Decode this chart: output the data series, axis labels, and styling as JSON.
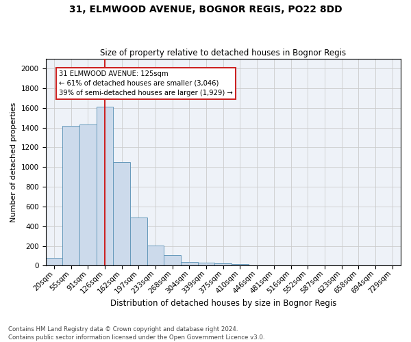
{
  "title1": "31, ELMWOOD AVENUE, BOGNOR REGIS, PO22 8DD",
  "title2": "Size of property relative to detached houses in Bognor Regis",
  "xlabel": "Distribution of detached houses by size in Bognor Regis",
  "ylabel": "Number of detached properties",
  "bar_color": "#ccdaeb",
  "bar_edge_color": "#6699bb",
  "categories": [
    "20sqm",
    "55sqm",
    "91sqm",
    "126sqm",
    "162sqm",
    "197sqm",
    "233sqm",
    "268sqm",
    "304sqm",
    "339sqm",
    "375sqm",
    "410sqm",
    "446sqm",
    "481sqm",
    "516sqm",
    "552sqm",
    "587sqm",
    "623sqm",
    "658sqm",
    "694sqm",
    "729sqm"
  ],
  "values": [
    80,
    1420,
    1430,
    1610,
    1050,
    490,
    205,
    105,
    40,
    28,
    22,
    18,
    0,
    0,
    0,
    0,
    0,
    0,
    0,
    0,
    0
  ],
  "property_line_x": 3.0,
  "property_label": "31 ELMWOOD AVENUE: 125sqm",
  "annotation_line1": "← 61% of detached houses are smaller (3,046)",
  "annotation_line2": "39% of semi-detached houses are larger (1,929) →",
  "vline_color": "#cc2222",
  "grid_color": "#cccccc",
  "background_color": "#eef2f8",
  "ylim": [
    0,
    2100
  ],
  "yticks": [
    0,
    200,
    400,
    600,
    800,
    1000,
    1200,
    1400,
    1600,
    1800,
    2000
  ],
  "footnote1": "Contains HM Land Registry data © Crown copyright and database right 2024.",
  "footnote2": "Contains public sector information licensed under the Open Government Licence v3.0."
}
